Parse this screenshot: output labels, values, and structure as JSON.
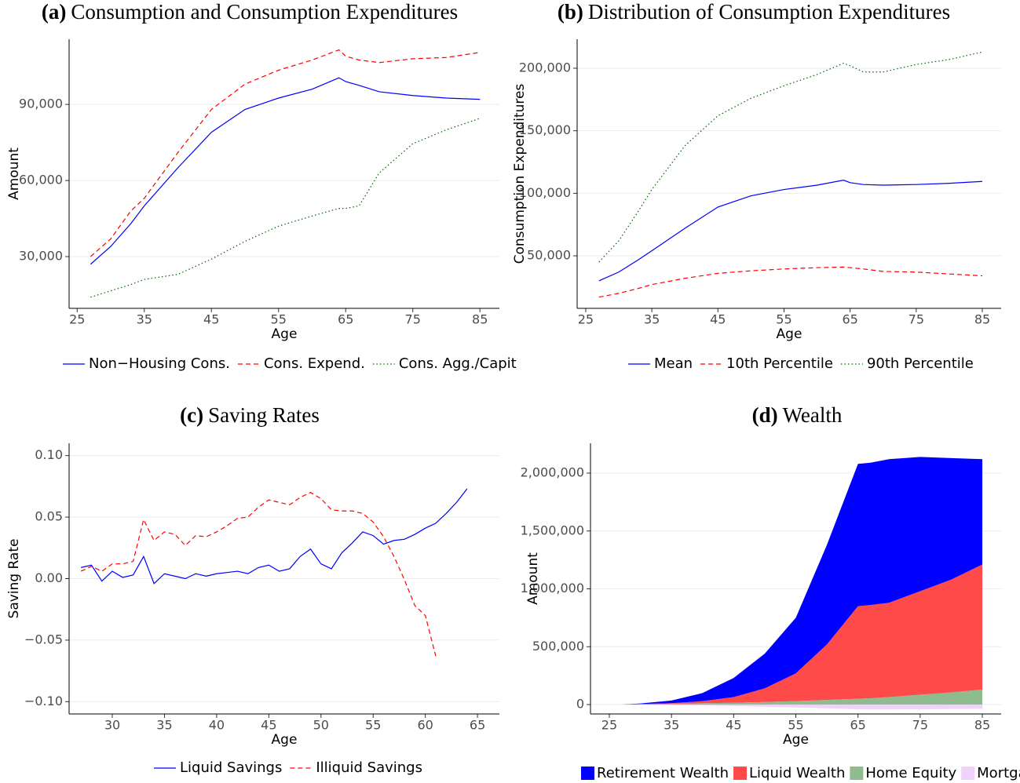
{
  "chart_data": [
    {
      "type": "line",
      "panel": "(a)",
      "title": "Consumption and Consumption Expenditures",
      "x_label": "Age",
      "y_label": "Amount",
      "x": [
        27,
        30,
        33,
        35,
        40,
        45,
        50,
        55,
        60,
        64,
        65,
        67,
        70,
        75,
        80,
        85
      ],
      "series": [
        {
          "name": "Non−Housing Cons.",
          "color": "#0000ff",
          "dash": "solid",
          "values": [
            27000,
            34000,
            43000,
            50000,
            65000,
            79000,
            88000,
            92500,
            96000,
            100500,
            99000,
            97500,
            95000,
            93500,
            92500,
            92000
          ]
        },
        {
          "name": "Cons. Expend.",
          "color": "#ff0000",
          "dash": "dashed",
          "values": [
            30000,
            37000,
            48000,
            53000,
            71000,
            88000,
            98000,
            103500,
            107500,
            111500,
            109000,
            107500,
            106500,
            108000,
            108500,
            110500
          ]
        },
        {
          "name": "Cons. Agg./Capit",
          "color": "#006400",
          "dash": "dotted",
          "values": [
            14000,
            16500,
            19000,
            21000,
            23000,
            29000,
            36000,
            42000,
            46000,
            49000,
            49000,
            50000,
            63000,
            74500,
            80000,
            84500
          ]
        }
      ],
      "xlim": [
        23.8,
        87.9
      ],
      "xticks": [
        25,
        35,
        45,
        55,
        65,
        75,
        85
      ],
      "ylim": [
        9600,
        115700
      ],
      "yticks": [
        {
          "value": 30000,
          "label": "30,000"
        },
        {
          "value": 60000,
          "label": "60,000"
        },
        {
          "value": 90000,
          "label": "90,000"
        }
      ],
      "grid": true
    },
    {
      "type": "line",
      "panel": "(b)",
      "title": "Distribution of Consumption Expenditures",
      "x_label": "Age",
      "y_label": "Consumption Expenditures",
      "x": [
        27,
        30,
        33,
        35,
        40,
        45,
        50,
        55,
        60,
        64,
        65,
        67,
        70,
        75,
        80,
        85
      ],
      "series": [
        {
          "name": "Mean",
          "color": "#0000ff",
          "dash": "solid",
          "values": [
            30000,
            37000,
            47000,
            54000,
            72000,
            89000,
            98000,
            103000,
            106500,
            110500,
            108500,
            107000,
            106500,
            107000,
            108000,
            109500
          ]
        },
        {
          "name": "10th Percentile",
          "color": "#ff0000",
          "dash": "dashed",
          "values": [
            17000,
            20000,
            24000,
            27000,
            32000,
            36000,
            38000,
            39500,
            40500,
            41000,
            40500,
            39500,
            37500,
            37000,
            35500,
            34000
          ]
        },
        {
          "name": "90th Percentile",
          "color": "#006400",
          "dash": "dotted",
          "values": [
            45000,
            62000,
            86000,
            103000,
            138000,
            162000,
            176000,
            186000,
            195000,
            204000,
            202000,
            197000,
            197000,
            203000,
            207000,
            213000
          ]
        }
      ],
      "xlim": [
        23.7,
        87.85
      ],
      "xticks": [
        25,
        35,
        45,
        55,
        65,
        75,
        85
      ],
      "ylim": [
        8000,
        223200
      ],
      "yticks": [
        {
          "value": 50000,
          "label": "50,000"
        },
        {
          "value": 100000,
          "label": "100,000"
        },
        {
          "value": 150000,
          "label": "150,000"
        },
        {
          "value": 200000,
          "label": "200,000"
        }
      ],
      "grid": true
    },
    {
      "type": "line",
      "panel": "(c)",
      "title": "Saving Rates",
      "x_label": "Age",
      "y_label": "Saving Rate",
      "x": [
        27,
        28,
        29,
        30,
        31,
        32,
        33,
        34,
        35,
        36,
        37,
        38,
        39,
        40,
        41,
        42,
        43,
        44,
        45,
        46,
        47,
        48,
        49,
        50,
        51,
        52,
        53,
        54,
        55,
        56,
        57,
        58,
        59,
        60,
        61,
        62,
        63,
        64
      ],
      "series": [
        {
          "name": "Liquid Savings",
          "color": "#0000ff",
          "dash": "solid",
          "values": [
            0.009,
            0.011,
            -0.002,
            0.006,
            0.001,
            0.003,
            0.018,
            -0.004,
            0.004,
            0.002,
            0.0,
            0.004,
            0.002,
            0.004,
            0.005,
            0.006,
            0.004,
            0.009,
            0.011,
            0.006,
            0.008,
            0.018,
            0.024,
            0.012,
            0.008,
            0.021,
            0.029,
            0.038,
            0.035,
            0.028,
            0.031,
            0.032,
            0.036,
            0.041,
            0.045,
            0.053,
            0.062,
            0.073
          ]
        },
        {
          "name": "Illiquid Savings",
          "color": "#ff0000",
          "dash": "dashed",
          "values": [
            0.006,
            0.01,
            0.006,
            0.012,
            0.012,
            0.014,
            0.048,
            0.031,
            0.038,
            0.036,
            0.027,
            0.035,
            0.034,
            0.038,
            0.043,
            0.049,
            0.05,
            0.058,
            0.064,
            0.062,
            0.06,
            0.066,
            0.07,
            0.065,
            0.056,
            0.055,
            0.055,
            0.053,
            0.046,
            0.034,
            0.018,
            -0.001,
            -0.022,
            -0.03,
            -0.063,
            null,
            null,
            null
          ]
        }
      ],
      "xlim": [
        25.86,
        67.1
      ],
      "xticks": [
        30,
        35,
        40,
        45,
        50,
        55,
        60,
        65
      ],
      "ylim": [
        -0.11,
        0.11
      ],
      "yticks": [
        {
          "value": -0.1,
          "label": "−0.10"
        },
        {
          "value": -0.05,
          "label": "−0.05"
        },
        {
          "value": 0,
          "label": "0.00"
        },
        0.05,
        {
          "value": 0.1,
          "label": "0.10"
        }
      ],
      "grid": true
    },
    {
      "type": "stacked_area",
      "panel": "(d)",
      "title": "Wealth",
      "x_label": "Age",
      "y_label": "Amount",
      "x": [
        27,
        30,
        35,
        40,
        45,
        50,
        55,
        60,
        65,
        67,
        70,
        75,
        80,
        85
      ],
      "series": [
        {
          "name": "Retirement Wealth",
          "color": "#0000ff",
          "values": [
            0,
            5000,
            23000,
            70000,
            165000,
            300000,
            480000,
            860000,
            1230000,
            1230000,
            1240000,
            1160000,
            1050000,
            910000
          ]
        },
        {
          "name": "Liquid Wealth",
          "color": "#ff4a4a",
          "values": [
            0,
            2000,
            4000,
            18000,
            49000,
            118000,
            240000,
            480000,
            800000,
            805000,
            815000,
            895000,
            975000,
            1080000
          ]
        },
        {
          "name": "Home Equity",
          "color": "#8fbc8f",
          "values": [
            0,
            3000,
            8000,
            12000,
            16000,
            22000,
            30000,
            40000,
            50000,
            55000,
            65000,
            85000,
            105000,
            130000
          ]
        },
        {
          "name": "Mortgag",
          "color": "#f0d2fa",
          "values": [
            0,
            -2000,
            -5000,
            -8000,
            -12000,
            -18000,
            -25000,
            -32000,
            -40000,
            -42000,
            -42000,
            -40000,
            -38000,
            -36000
          ]
        }
      ],
      "xlim": [
        21.97,
        88.03
      ],
      "xticks": [
        25,
        35,
        45,
        55,
        65,
        75,
        85
      ],
      "ylim": [
        -81000,
        2257600
      ],
      "yticks": [
        0,
        {
          "value": 500000,
          "label": "500,000"
        },
        {
          "value": 1000000,
          "label": "1,000,000"
        },
        {
          "value": 1500000,
          "label": "1,500,000"
        },
        {
          "value": 2000000,
          "label": "2,000,000"
        }
      ],
      "grid": true
    }
  ]
}
